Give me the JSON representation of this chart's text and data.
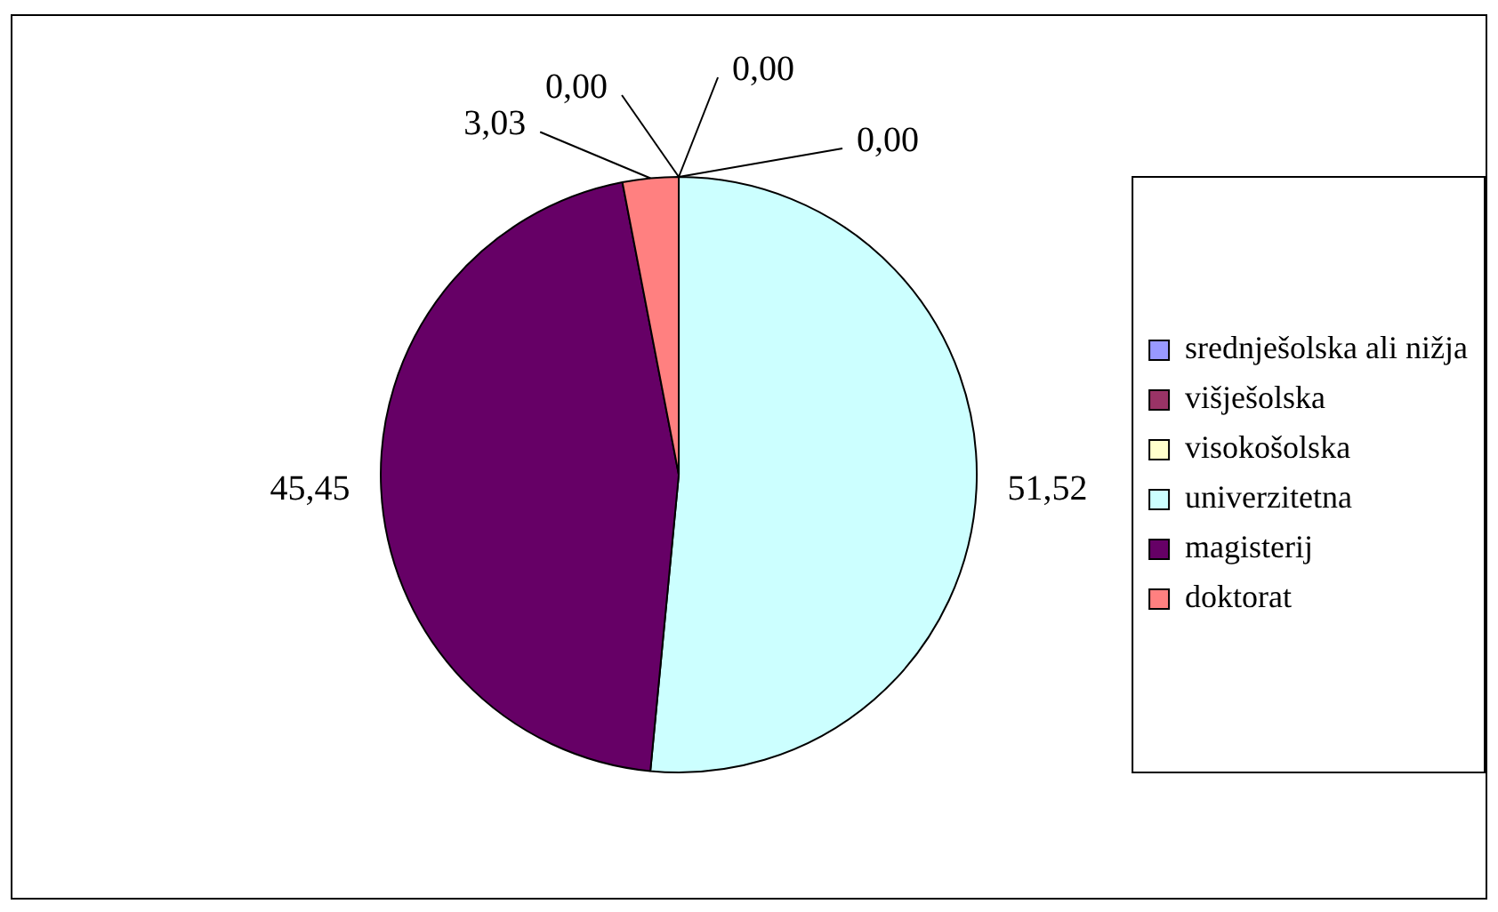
{
  "chart_data": {
    "type": "pie",
    "categories": [
      "srednješolska ali nižja",
      "višješolska",
      "visokošolska",
      "univerzitetna",
      "magisterij",
      "doktorat"
    ],
    "values": [
      0,
      0,
      0,
      51.52,
      45.45,
      3.03
    ],
    "value_labels": [
      "0,00",
      "0,00",
      "0,00",
      "51,52",
      "45,45",
      "3,03"
    ],
    "colors": [
      "#9999ff",
      "#993366",
      "#ffffcc",
      "#ccffff",
      "#660066",
      "#ff8080"
    ],
    "legend": "right"
  }
}
